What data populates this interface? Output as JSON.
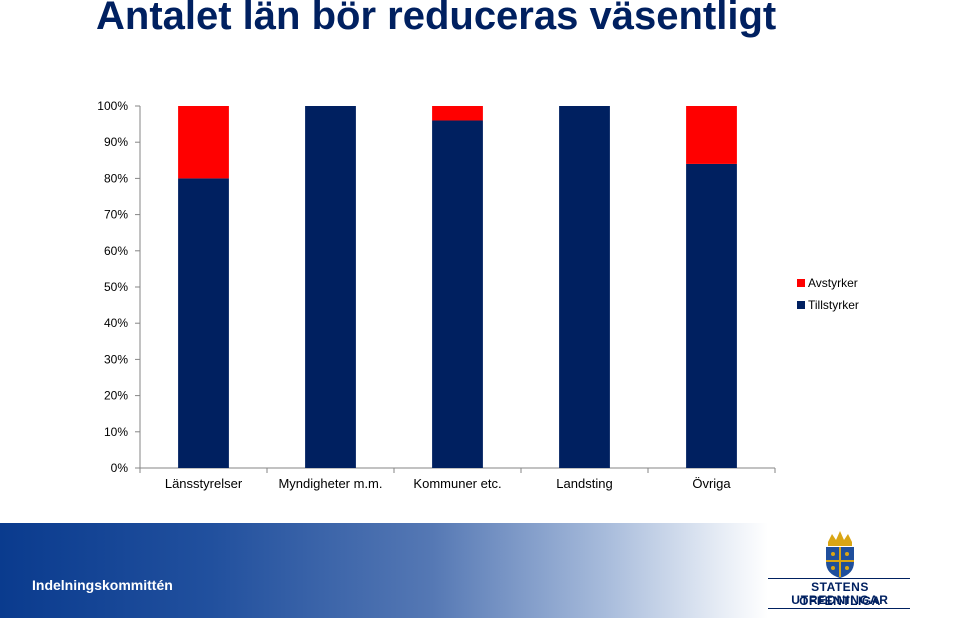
{
  "slide": {
    "title": "Antalet län bör reduceras väsentligt"
  },
  "footer": {
    "label": "Indelningskommittén",
    "logo_line1": "STATENS OFFENTLIGA",
    "logo_line2": "UTREDNINGAR"
  },
  "chart_data": {
    "type": "bar",
    "stacked": true,
    "percent": true,
    "categories": [
      "Länsstyrelser",
      "Myndigheter m.m.",
      "Kommuner etc.",
      "Landsting",
      "Övriga"
    ],
    "series": [
      {
        "name": "Tillstyrker",
        "color": "#002060",
        "values": [
          80,
          100,
          96,
          100,
          84
        ]
      },
      {
        "name": "Avstyrker",
        "color": "#ff0000",
        "values": [
          20,
          0,
          4,
          0,
          16
        ]
      }
    ],
    "yticks": [
      "0%",
      "10%",
      "20%",
      "30%",
      "40%",
      "50%",
      "60%",
      "70%",
      "80%",
      "90%",
      "100%"
    ],
    "ylim": [
      0,
      100
    ],
    "grid": false,
    "legend_position": "right"
  }
}
